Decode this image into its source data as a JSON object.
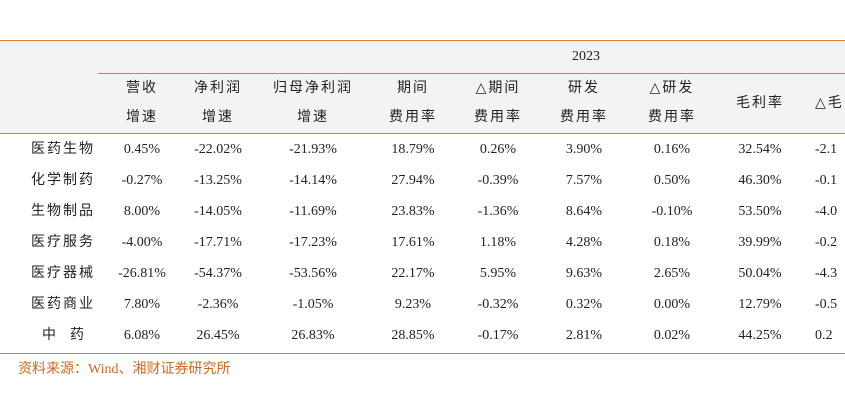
{
  "table": {
    "year": "2023",
    "columns": [
      [
        "营收",
        "增速"
      ],
      [
        "净利润",
        "增速"
      ],
      [
        "归母净利润",
        "增速"
      ],
      [
        "期间",
        "费用率"
      ],
      [
        "△期间",
        "费用率"
      ],
      [
        "研发",
        "费用率"
      ],
      [
        "△研发",
        "费用率"
      ],
      [
        "毛利率"
      ],
      [
        "△毛"
      ]
    ],
    "rows": [
      {
        "label": "医药生物",
        "cells": [
          "0.45%",
          "-22.02%",
          "-21.93%",
          "18.79%",
          "0.26%",
          "3.90%",
          "0.16%",
          "32.54%",
          "-2.1"
        ]
      },
      {
        "label": "化学制药",
        "cells": [
          "-0.27%",
          "-13.25%",
          "-14.14%",
          "27.94%",
          "-0.39%",
          "7.57%",
          "0.50%",
          "46.30%",
          "-0.1"
        ]
      },
      {
        "label": "生物制品",
        "cells": [
          "8.00%",
          "-14.05%",
          "-11.69%",
          "23.83%",
          "-1.36%",
          "8.64%",
          "-0.10%",
          "53.50%",
          "-4.0"
        ]
      },
      {
        "label": "医疗服务",
        "cells": [
          "-4.00%",
          "-17.71%",
          "-17.23%",
          "17.61%",
          "1.18%",
          "4.28%",
          "0.18%",
          "39.99%",
          "-0.2"
        ]
      },
      {
        "label": "医疗器械",
        "cells": [
          "-26.81%",
          "-54.37%",
          "-53.56%",
          "22.17%",
          "5.95%",
          "9.63%",
          "2.65%",
          "50.04%",
          "-4.3"
        ]
      },
      {
        "label": "医药商业",
        "cells": [
          "7.80%",
          "-2.36%",
          "-1.05%",
          "9.23%",
          "-0.32%",
          "0.32%",
          "0.00%",
          "12.79%",
          "-0.5"
        ]
      },
      {
        "label": "中药",
        "cells": [
          "6.08%",
          "26.45%",
          "26.83%",
          "28.85%",
          "-0.17%",
          "2.81%",
          "0.02%",
          "44.25%",
          "0.2"
        ]
      }
    ]
  },
  "source": "资料来源：Wind、湘财证券研究所"
}
